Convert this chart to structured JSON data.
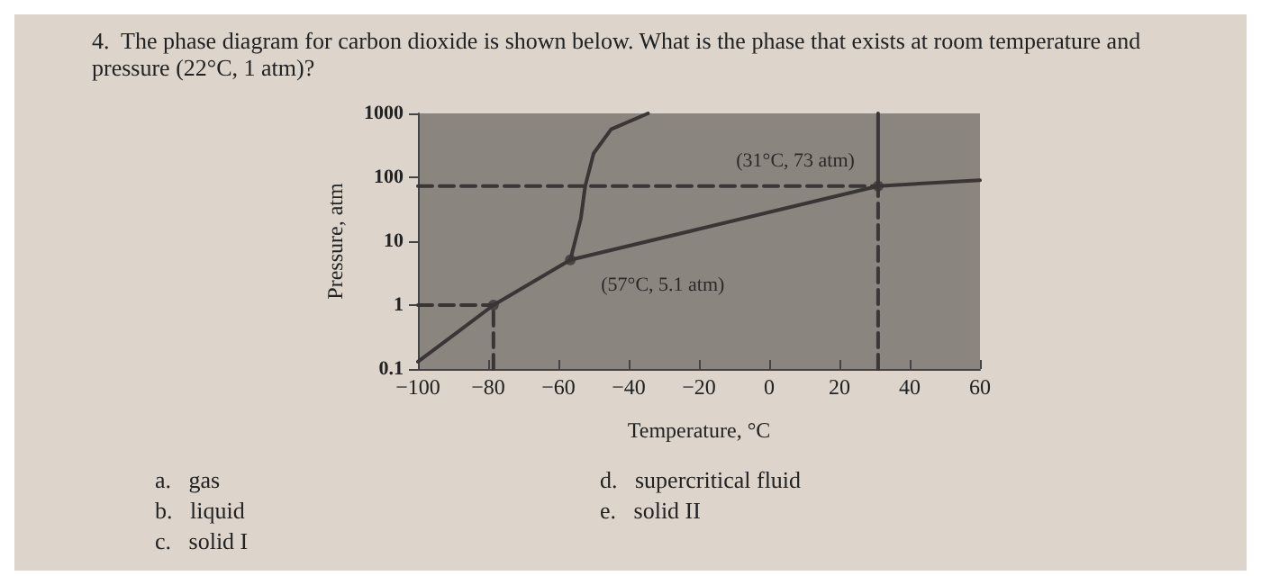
{
  "chart_data": {
    "type": "line",
    "title": "4.  The phase diagram for carbon dioxide is shown below. What is the phase that exists at room temperature and\npressure (22°C, 1 atm)?",
    "xlabel": "Temperature, °C",
    "ylabel": "Pressure, atm",
    "log": "y",
    "grid": false,
    "marker": "none",
    "line_style": "solid",
    "xlim": [
      -100,
      60
    ],
    "xticks": [
      -100,
      -80,
      -60,
      -40,
      -20,
      0,
      20,
      40,
      60
    ],
    "ylim": [
      0.1,
      1000
    ],
    "yticks": [
      0.1,
      1,
      10,
      100,
      1000
    ],
    "series": [
      {
        "color": "#3a3636",
        "x": [
          -100,
          -78.5,
          -56.6
        ],
        "values": [
          0.13,
          1,
          5.1
        ]
      },
      {
        "color": "#3a3636",
        "x": [
          -56.6,
          31
        ],
        "values": [
          5.1,
          73
        ]
      },
      {
        "color": "#3a3636",
        "x": [
          31,
          60
        ],
        "values": [
          73,
          90
        ]
      },
      {
        "color": "#3a3636",
        "x": [
          -56.6,
          -53.6,
          -52.4,
          -50,
          -45,
          -34.5
        ],
        "values": [
          5.1,
          23,
          72,
          236,
          565,
          1000
        ]
      },
      {
        "color": "#3a3636",
        "x": [
          31,
          31
        ],
        "values": [
          73,
          1000
        ]
      },
      {
        "color": "#3a3636",
        "line_style": "dashed",
        "x": [
          -100,
          31
        ],
        "values": [
          73,
          73
        ]
      },
      {
        "color": "#3a3636",
        "line_style": "dashed",
        "x": [
          31,
          31
        ],
        "values": [
          0.1,
          73
        ]
      },
      {
        "color": "#3a3636",
        "line_style": "dashed",
        "x": [
          -100,
          -78.5
        ],
        "values": [
          1,
          1
        ]
      },
      {
        "color": "#3a3636",
        "line_style": "dashed",
        "x": [
          -78.5,
          -78.5
        ],
        "values": [
          0.1,
          1
        ]
      },
      {
        "type": "scatter",
        "marker": "circle",
        "color": "#3a3636",
        "x": [
          -78.5,
          -56.6,
          31
        ],
        "values": [
          1,
          5.1,
          73
        ]
      }
    ],
    "annotations": [
      {
        "text": "(31°C, 73 atm)",
        "x": 31,
        "y": 73
      },
      {
        "text": "(57°C, 5.1 atm)",
        "x": -56.6,
        "y": 5.1
      },
      "a.   gas",
      "b.   liquid",
      "c.   solid I",
      "d.   supercritical fluid",
      "e.   solid II"
    ]
  }
}
